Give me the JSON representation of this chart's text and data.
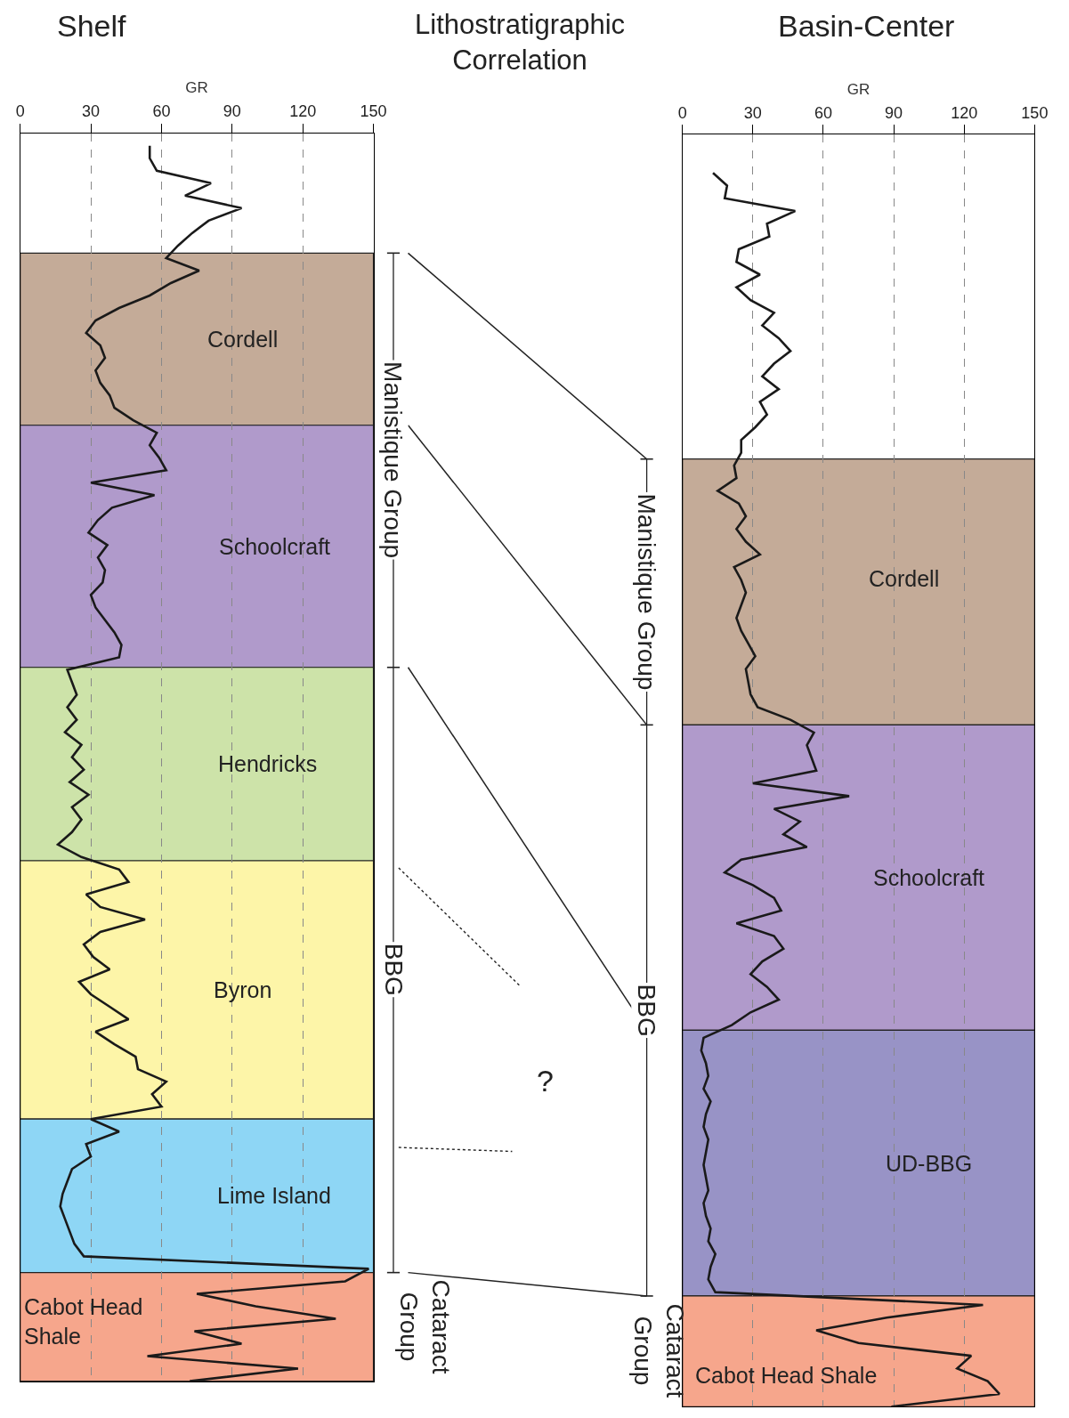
{
  "chart_data": [
    {
      "type": "line",
      "title": "Shelf",
      "xlabel": "GR",
      "orientation": "horizontal",
      "tick_labels": "x",
      "grid": "x",
      "xlim": [
        0,
        150
      ],
      "xticks": [
        0,
        30,
        60,
        90,
        120,
        150
      ],
      "color": "#1a1a1a",
      "categories": [
        null,
        null,
        null,
        null,
        null,
        null,
        null,
        null,
        null,
        null,
        null,
        null,
        null,
        null,
        null,
        null,
        null,
        null,
        null,
        null,
        null,
        null,
        null,
        null,
        null,
        null,
        null,
        null,
        null,
        null,
        null,
        null,
        null,
        null,
        null,
        null,
        null,
        null,
        null,
        null,
        null,
        null,
        null,
        null,
        null,
        null,
        null,
        null,
        null,
        null,
        null,
        null,
        null,
        null,
        null,
        null,
        null,
        null,
        null,
        null,
        null,
        null,
        null,
        null,
        null,
        null,
        null,
        null,
        null,
        null,
        null,
        null,
        null,
        null,
        null,
        null,
        null,
        null,
        null,
        null,
        null,
        null,
        null,
        null,
        null,
        null,
        null,
        null,
        null,
        null,
        null,
        null,
        null,
        null,
        null,
        null,
        null,
        null,
        null,
        null,
        null
      ],
      "values": [
        null,
        55,
        55,
        58,
        81,
        70,
        94,
        80,
        73,
        67,
        62,
        76,
        64,
        55,
        42,
        32,
        28,
        34,
        36,
        32,
        34,
        38,
        40,
        48,
        58,
        55,
        59,
        62,
        30,
        57,
        39,
        33,
        29,
        37,
        33,
        36,
        35,
        30,
        32,
        36,
        40,
        43,
        42,
        20,
        22,
        24,
        20,
        24,
        19,
        26,
        22,
        27,
        21,
        29,
        22,
        26,
        22,
        16,
        26,
        42,
        46,
        28,
        34,
        53,
        34,
        27,
        31,
        38,
        25,
        30,
        38,
        46,
        32,
        40,
        49,
        50,
        62,
        56,
        60,
        30,
        42,
        28,
        30,
        22,
        20,
        18,
        17,
        19,
        21,
        23,
        27,
        148,
        138,
        75,
        100,
        134,
        74,
        94,
        54,
        118,
        72
      ],
      "annotations": [
        "Cordell",
        "Schoolcraft",
        "Hendricks",
        "Byron",
        "Lime Island",
        "Cabot Head\nShale"
      ]
    },
    {
      "type": "other",
      "title": "Lithostratigraphic\nCorrelation",
      "annotations": [
        "Manistique Group",
        "BBG",
        "Cataract\nGroup",
        "Manistique Group",
        "BBG",
        "Cataract\nGroup",
        "?"
      ]
    },
    {
      "type": "line",
      "title": "Basin-Center",
      "xlabel": "GR",
      "orientation": "horizontal",
      "tick_labels": "x",
      "grid": "x",
      "xlim": [
        0,
        150
      ],
      "xticks": [
        0,
        30,
        60,
        90,
        120,
        150
      ],
      "color": "#1a1a1a",
      "categories": [
        null,
        null,
        null,
        null,
        null,
        null,
        null,
        null,
        null,
        null,
        null,
        null,
        null,
        null,
        null,
        null,
        null,
        null,
        null,
        null,
        null,
        null,
        null,
        null,
        null,
        null,
        null,
        null,
        null,
        null,
        null,
        null,
        null,
        null,
        null,
        null,
        null,
        null,
        null,
        null,
        null,
        null,
        null,
        null,
        null,
        null,
        null,
        null,
        null,
        null,
        null,
        null,
        null,
        null,
        null,
        null,
        null,
        null,
        null,
        null,
        null,
        null,
        null,
        null,
        null,
        null,
        null,
        null,
        null,
        null,
        null,
        null,
        null,
        null,
        null,
        null,
        null,
        null,
        null,
        null,
        null,
        null,
        null,
        null,
        null,
        null,
        null,
        null,
        null,
        null,
        null,
        null,
        null,
        null,
        null,
        null,
        null,
        null,
        null,
        null,
        null
      ],
      "values": [
        null,
        null,
        null,
        13,
        19,
        18,
        48,
        36,
        37,
        24,
        23,
        33,
        23,
        29,
        39,
        34,
        41,
        46,
        39,
        34,
        41,
        33,
        36,
        31,
        25,
        25,
        22,
        23,
        15,
        24,
        27,
        23,
        27,
        33,
        22,
        25,
        27,
        25,
        23,
        25,
        28,
        31,
        27,
        28,
        29,
        32,
        46,
        56,
        53,
        55,
        57,
        30,
        71,
        39,
        50,
        43,
        53,
        25,
        18,
        30,
        39,
        42,
        23,
        39,
        43,
        34,
        29,
        36,
        41,
        29,
        21,
        9,
        8,
        10,
        11,
        9,
        12,
        10,
        9,
        11,
        10,
        9,
        10,
        11,
        9,
        10,
        12,
        11,
        14,
        12,
        11,
        14,
        128,
        87,
        57,
        75,
        123,
        117,
        130,
        135,
        89
      ],
      "annotations": [
        "Cordell",
        "Schoolcraft",
        "UD-BBG",
        "Cabot Head Shale"
      ]
    }
  ]
}
